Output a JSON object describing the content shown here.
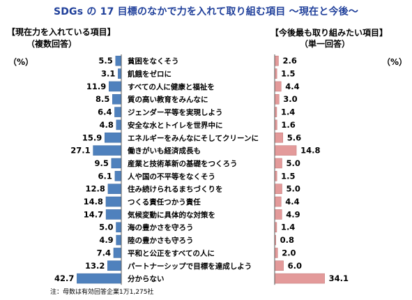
{
  "title": "SDGs の 17 目標のなかで力を入れて取り組む項目 ～現在と今後～",
  "left_header": "【現在力を入れている項目】",
  "left_subheader": "（複数回答）",
  "right_header": "【今後最も取り組みたい項目】",
  "right_subheader": "（単一回答）",
  "unit_left": "（%）",
  "unit_right": "（%）",
  "note": "注：母数は有効回答企業1万1,275社",
  "colors": {
    "left_bar": "#4f81bd",
    "right_bar": "#e39a9a",
    "title": "#1f3f9a"
  },
  "chart_data": {
    "type": "bar",
    "categories": [
      "貧困をなくそう",
      "飢餓をゼロに",
      "すべての人に健康と福祉を",
      "質の高い教育をみんなに",
      "ジェンダー平等を実現しよう",
      "安全な水とトイレを世界中に",
      "エネルギーをみんなにそしてクリーンに",
      "働きがいも経済成長も",
      "産業と技術革新の基礎をつくろう",
      "人や国の不平等をなくそう",
      "住み続けられるまちづくりを",
      "つくる責任つかう責任",
      "気候変動に具体的な対策を",
      "海の豊かさを守ろう",
      "陸の豊かさも守ろう",
      "平和と公正をすべての人に",
      "パートナーシップで目標を達成しよう",
      "分からない"
    ],
    "series": [
      {
        "name": "【現在力を入れている項目】",
        "values": [
          5.5,
          3.1,
          11.9,
          8.5,
          6.4,
          4.8,
          15.9,
          27.1,
          9.5,
          6.1,
          12.8,
          14.8,
          14.7,
          5.0,
          4.9,
          7.4,
          13.2,
          42.7
        ]
      },
      {
        "name": "【今後最も取り組みたい項目】",
        "values": [
          2.6,
          1.5,
          4.4,
          3.0,
          1.4,
          1.6,
          5.6,
          14.8,
          5.0,
          1.5,
          5.0,
          4.4,
          4.9,
          1.4,
          0.8,
          2.0,
          6.0,
          34.1
        ]
      }
    ],
    "value_labels": {
      "left": [
        "5.5",
        "3.1",
        "11.9",
        "8.5",
        "6.4",
        "4.8",
        "15.9",
        "27.1",
        "9.5",
        "6.1",
        "12.8",
        "14.8",
        "14.7",
        "5.0",
        "4.9",
        "7.4",
        "13.2",
        "42.7"
      ],
      "right": [
        "2.6",
        "1.5",
        "4.4",
        "3.0",
        "1.4",
        "1.6",
        "5.6",
        "14.8",
        "5.0",
        "1.5",
        "5.0",
        "4.4",
        "4.9",
        "1.4",
        "0.8",
        "2.0",
        "6.0",
        "34.1"
      ]
    },
    "orientation": "horizontal-butterfly",
    "grid": false
  }
}
